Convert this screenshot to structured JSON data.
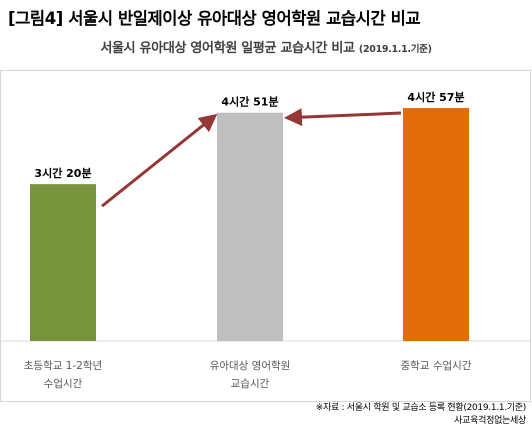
{
  "figure_title": "[그림4] 서울시 반일제이상 유아대상 영어학원 교습시간 비교",
  "chart_data": {
    "type": "bar",
    "title": "서울시 유아대상 영어학원 일평균 교습시간 비교",
    "title_date": "(2019.1.1.기준)",
    "categories": [
      "초등학교 1-2학년 수업시간",
      "유아대상 영어학원 교습시간",
      "중학교 수업시간"
    ],
    "category_lines": [
      [
        "초등학교 1-2학년",
        "수업시간"
      ],
      [
        "유아대상 영어학원",
        "교습시간"
      ],
      [
        "중학교 수업시간"
      ]
    ],
    "values": [
      200,
      291,
      297
    ],
    "value_labels": [
      "3시간 20분",
      "4시간 51분",
      "4시간 57분"
    ],
    "unit": "minutes",
    "colors": [
      "#77933c",
      "#bfbfbf",
      "#e36c09"
    ],
    "arrow_color": "#953735",
    "arrows": [
      {
        "from": 0,
        "to": 1
      },
      {
        "from": 2,
        "to": 1
      }
    ],
    "ylim": [
      0,
      320
    ],
    "xlabel": "",
    "ylabel": "",
    "grid": false,
    "legend": "none"
  },
  "source_lines": [
    "※자료 : 서울시 학원 및 교습소 등록 현황(2019.1.1.기준)",
    "사교육걱정없는세상"
  ]
}
